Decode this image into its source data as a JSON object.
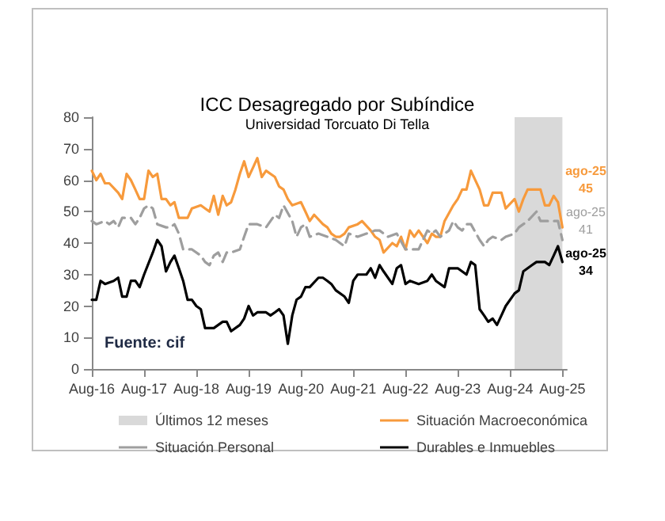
{
  "chart_data": {
    "type": "line",
    "title": "ICC Desagregado por Subíndice",
    "subtitle": "Universidad Torcuato Di Tella",
    "xlim": [
      "2016-08",
      "2025-09"
    ],
    "xticks": [
      {
        "value": "2016-08",
        "label": "Aug-16"
      },
      {
        "value": "2017-08",
        "label": "Aug-17"
      },
      {
        "value": "2018-08",
        "label": "Aug-18"
      },
      {
        "value": "2019-08",
        "label": "Aug-19"
      },
      {
        "value": "2020-08",
        "label": "Aug-20"
      },
      {
        "value": "2021-08",
        "label": "Aug-21"
      },
      {
        "value": "2022-08",
        "label": "Aug-22"
      },
      {
        "value": "2023-08",
        "label": "Aug-23"
      },
      {
        "value": "2024-08",
        "label": "Aug-24"
      },
      {
        "value": "2025-08",
        "label": "Aug-25"
      }
    ],
    "ylim": [
      0,
      80
    ],
    "yticks": [
      0,
      10,
      20,
      30,
      40,
      50,
      60,
      70,
      80
    ],
    "grid": false,
    "legend": "bottom",
    "marker": "none",
    "series": [
      {
        "name": "Situación Macroeconómica",
        "color": "#f79a3c",
        "line_style": "solid",
        "x": [
          "2016-08",
          "2016-09",
          "2016-10",
          "2016-11",
          "2016-12",
          "2017-02",
          "2017-03",
          "2017-04",
          "2017-05",
          "2017-06",
          "2017-07",
          "2017-08",
          "2017-09",
          "2017-10",
          "2017-11",
          "2017-12",
          "2018-01",
          "2018-02",
          "2018-03",
          "2018-04",
          "2018-05",
          "2018-06",
          "2018-07",
          "2018-09",
          "2018-10",
          "2018-11",
          "2018-12",
          "2019-01",
          "2019-02",
          "2019-03",
          "2019-04",
          "2019-05",
          "2019-06",
          "2019-07",
          "2019-08",
          "2019-09",
          "2019-10",
          "2019-11",
          "2019-12",
          "2020-02",
          "2020-03",
          "2020-04",
          "2020-05",
          "2020-06",
          "2020-08",
          "2020-09",
          "2020-10",
          "2020-11",
          "2021-01",
          "2021-02",
          "2021-03",
          "2021-04",
          "2021-05",
          "2021-06",
          "2021-07",
          "2021-09",
          "2021-10",
          "2021-12",
          "2022-01",
          "2022-02",
          "2022-03",
          "2022-05",
          "2022-06",
          "2022-07",
          "2022-08",
          "2022-09",
          "2022-10",
          "2022-11",
          "2023-01",
          "2023-02",
          "2023-03",
          "2023-04",
          "2023-05",
          "2023-07",
          "2023-08",
          "2023-09",
          "2023-10",
          "2023-11",
          "2024-01",
          "2024-02",
          "2024-03",
          "2024-04",
          "2024-06",
          "2024-07",
          "2024-09",
          "2024-10",
          "2024-11",
          "2024-12",
          "2025-01",
          "2025-03",
          "2025-04",
          "2025-05",
          "2025-06",
          "2025-07",
          "2025-08"
        ],
        "values": [
          63,
          60,
          62,
          59,
          59,
          56,
          54,
          62,
          60,
          57,
          54,
          54,
          63,
          61,
          62,
          54,
          54,
          52,
          53,
          48,
          48,
          48,
          51,
          52,
          51,
          50,
          55,
          49,
          55,
          52,
          53,
          57,
          62,
          66,
          61,
          64,
          67,
          61,
          63,
          61,
          58,
          57,
          54,
          52,
          53,
          50,
          47,
          49,
          46,
          45,
          43,
          42,
          42,
          43,
          45,
          46,
          47,
          44,
          42,
          41,
          37,
          40,
          39,
          42,
          38,
          44,
          42,
          44,
          40,
          43,
          42,
          42,
          47,
          52,
          54,
          57,
          57,
          63,
          57,
          52,
          52,
          56,
          56,
          51,
          54,
          50,
          54,
          57,
          57,
          57,
          52,
          52,
          55,
          53,
          45
        ]
      },
      {
        "name": "Situación Personal",
        "color": "#9e9e9e",
        "line_style": "dashed",
        "x": [
          "2016-08",
          "2016-09",
          "2016-11",
          "2016-12",
          "2017-01",
          "2017-02",
          "2017-03",
          "2017-05",
          "2017-06",
          "2017-07",
          "2017-08",
          "2017-09",
          "2017-10",
          "2017-11",
          "2018-01",
          "2018-02",
          "2018-03",
          "2018-04",
          "2018-05",
          "2018-07",
          "2018-09",
          "2018-10",
          "2018-11",
          "2018-12",
          "2019-01",
          "2019-02",
          "2019-03",
          "2019-04",
          "2019-06",
          "2019-07",
          "2019-08",
          "2019-10",
          "2019-12",
          "2020-01",
          "2020-02",
          "2020-03",
          "2020-04",
          "2020-06",
          "2020-07",
          "2020-08",
          "2020-09",
          "2020-10",
          "2020-12",
          "2021-02",
          "2021-04",
          "2021-05",
          "2021-06",
          "2021-07",
          "2021-09",
          "2021-11",
          "2022-01",
          "2022-02",
          "2022-04",
          "2022-06",
          "2022-08",
          "2022-10",
          "2022-11",
          "2023-01",
          "2023-02",
          "2023-03",
          "2023-04",
          "2023-06",
          "2023-07",
          "2023-08",
          "2023-09",
          "2023-10",
          "2023-11",
          "2024-01",
          "2024-02",
          "2024-03",
          "2024-04",
          "2024-06",
          "2024-07",
          "2024-09",
          "2024-10",
          "2024-12",
          "2025-02",
          "2025-03",
          "2025-05",
          "2025-07",
          "2025-08"
        ],
        "values": [
          47,
          46,
          47,
          46,
          47,
          45,
          48,
          48,
          46,
          48,
          51,
          52,
          51,
          46,
          45,
          45,
          46,
          43,
          38,
          38,
          36,
          34,
          33,
          36,
          37,
          34,
          37,
          37,
          38,
          42,
          46,
          46,
          45,
          47,
          49,
          48,
          52,
          47,
          42,
          45,
          46,
          42,
          43,
          42,
          41,
          40,
          39,
          43,
          42,
          43,
          44,
          44,
          42,
          43,
          38,
          38,
          38,
          44,
          43,
          44,
          42,
          44,
          47,
          45,
          44,
          46,
          46,
          41,
          39,
          41,
          42,
          41,
          42,
          43,
          45,
          47,
          50,
          47,
          47,
          47,
          41
        ]
      },
      {
        "name": "Durables e Inmuebles",
        "color": "#000000",
        "line_style": "solid",
        "x": [
          "2016-08",
          "2016-09",
          "2016-10",
          "2016-11",
          "2017-01",
          "2017-02",
          "2017-03",
          "2017-04",
          "2017-05",
          "2017-06",
          "2017-07",
          "2017-08",
          "2017-10",
          "2017-11",
          "2017-12",
          "2018-01",
          "2018-02",
          "2018-03",
          "2018-04",
          "2018-05",
          "2018-06",
          "2018-07",
          "2018-08",
          "2018-09",
          "2018-10",
          "2018-12",
          "2019-01",
          "2019-02",
          "2019-03",
          "2019-04",
          "2019-06",
          "2019-07",
          "2019-08",
          "2019-09",
          "2019-10",
          "2019-12",
          "2020-01",
          "2020-02",
          "2020-03",
          "2020-04",
          "2020-05",
          "2020-06",
          "2020-07",
          "2020-08",
          "2020-09",
          "2020-10",
          "2020-12",
          "2021-01",
          "2021-02",
          "2021-03",
          "2021-04",
          "2021-06",
          "2021-07",
          "2021-08",
          "2021-09",
          "2021-11",
          "2021-12",
          "2022-01",
          "2022-02",
          "2022-03",
          "2022-05",
          "2022-06",
          "2022-07",
          "2022-08",
          "2022-09",
          "2022-11",
          "2023-01",
          "2023-02",
          "2023-03",
          "2023-05",
          "2023-06",
          "2023-08",
          "2023-10",
          "2023-11",
          "2023-12",
          "2024-01",
          "2024-02",
          "2024-03",
          "2024-04",
          "2024-05",
          "2024-06",
          "2024-07",
          "2024-09",
          "2024-10",
          "2024-11",
          "2025-01",
          "2025-02",
          "2025-03",
          "2025-04",
          "2025-05",
          "2025-06",
          "2025-07",
          "2025-08"
        ],
        "values": [
          22,
          22,
          28,
          27,
          28,
          29,
          23,
          23,
          28,
          28,
          26,
          30,
          37,
          41,
          39,
          31,
          34,
          36,
          32,
          28,
          22,
          22,
          20,
          19,
          13,
          13,
          14,
          15,
          15,
          12,
          14,
          16,
          20,
          17,
          18,
          18,
          17,
          18,
          19,
          17,
          8,
          17,
          22,
          23,
          26,
          26,
          29,
          29,
          28,
          27,
          25,
          23,
          21,
          28,
          30,
          30,
          32,
          29,
          33,
          31,
          27,
          32,
          33,
          27,
          28,
          27,
          28,
          30,
          28,
          26,
          32,
          32,
          30,
          34,
          33,
          19,
          17,
          15,
          16,
          14,
          17,
          20,
          24,
          25,
          31,
          33,
          34,
          34,
          34,
          33,
          36,
          39,
          34
        ]
      }
    ],
    "bands": [
      {
        "axis": "x",
        "from": "2024-09",
        "to": "2025-08",
        "label": "Últimos 12 meses",
        "color": "#d9d9d9"
      }
    ],
    "annotations": [
      {
        "text": "ago-25\n45",
        "x": "2025-08",
        "y": 45
      },
      {
        "text": "ago-25\n41",
        "x": "2025-08",
        "y": 41
      },
      {
        "text": "ago-25\n34",
        "x": "2025-08",
        "y": 34
      },
      "Fuente: cif"
    ]
  }
}
